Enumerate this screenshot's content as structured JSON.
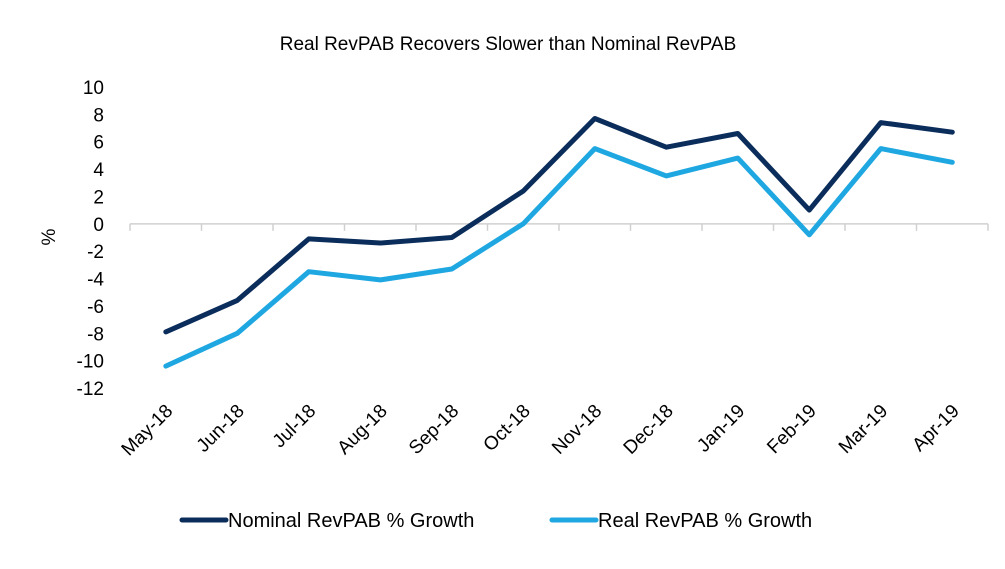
{
  "chart_data": {
    "type": "line",
    "title": "Real RevPAB Recovers Slower than Nominal RevPAB",
    "xlabel": "",
    "ylabel": "%",
    "ylim": [
      -12,
      10
    ],
    "yticks": [
      10,
      8,
      6,
      4,
      2,
      0,
      -2,
      -4,
      -6,
      -8,
      -10,
      -12
    ],
    "grid": false,
    "legend_position": "bottom",
    "categories": [
      "May-18",
      "Jun-18",
      "Jul-18",
      "Aug-18",
      "Sep-18",
      "Oct-18",
      "Nov-18",
      "Dec-18",
      "Jan-19",
      "Feb-19",
      "Mar-19",
      "Apr-19"
    ],
    "series": [
      {
        "name": "Nominal RevPAB % Growth",
        "color": "#0b2d5b",
        "values": [
          -7.9,
          -5.6,
          -1.1,
          -1.4,
          -1.0,
          2.4,
          7.7,
          5.6,
          6.6,
          1.0,
          7.4,
          6.7
        ]
      },
      {
        "name": "Real RevPAB % Growth",
        "color": "#1ea7e1",
        "values": [
          -10.4,
          -8.0,
          -3.5,
          -4.1,
          -3.3,
          0.0,
          5.5,
          3.5,
          4.8,
          -0.8,
          5.5,
          4.5
        ]
      }
    ]
  }
}
